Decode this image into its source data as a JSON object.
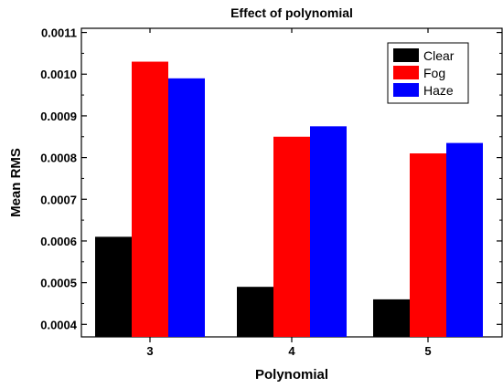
{
  "chart_data": {
    "type": "bar",
    "title": "Effect of polynomial",
    "xlabel": "Polynomial",
    "ylabel": "Mean RMS",
    "categories": [
      "3",
      "4",
      "5"
    ],
    "series": [
      {
        "name": "Clear",
        "color": "#000000",
        "values": [
          0.00061,
          0.00049,
          0.00046
        ]
      },
      {
        "name": "Fog",
        "color": "#ff0000",
        "values": [
          0.00103,
          0.00085,
          0.00081
        ]
      },
      {
        "name": "Haze",
        "color": "#0000ff",
        "values": [
          0.00099,
          0.000875,
          0.000835
        ]
      }
    ],
    "ylim": [
      0.00037,
      0.00111
    ],
    "yticks": [
      "0.0004",
      "0.0005",
      "0.0006",
      "0.0007",
      "0.0008",
      "0.0009",
      "0.0010",
      "0.0011"
    ],
    "ytick_values": [
      0.0004,
      0.0005,
      0.0006,
      0.0007,
      0.0008,
      0.0009,
      0.001,
      0.0011
    ],
    "grid": false,
    "legend_position": "top-right"
  }
}
